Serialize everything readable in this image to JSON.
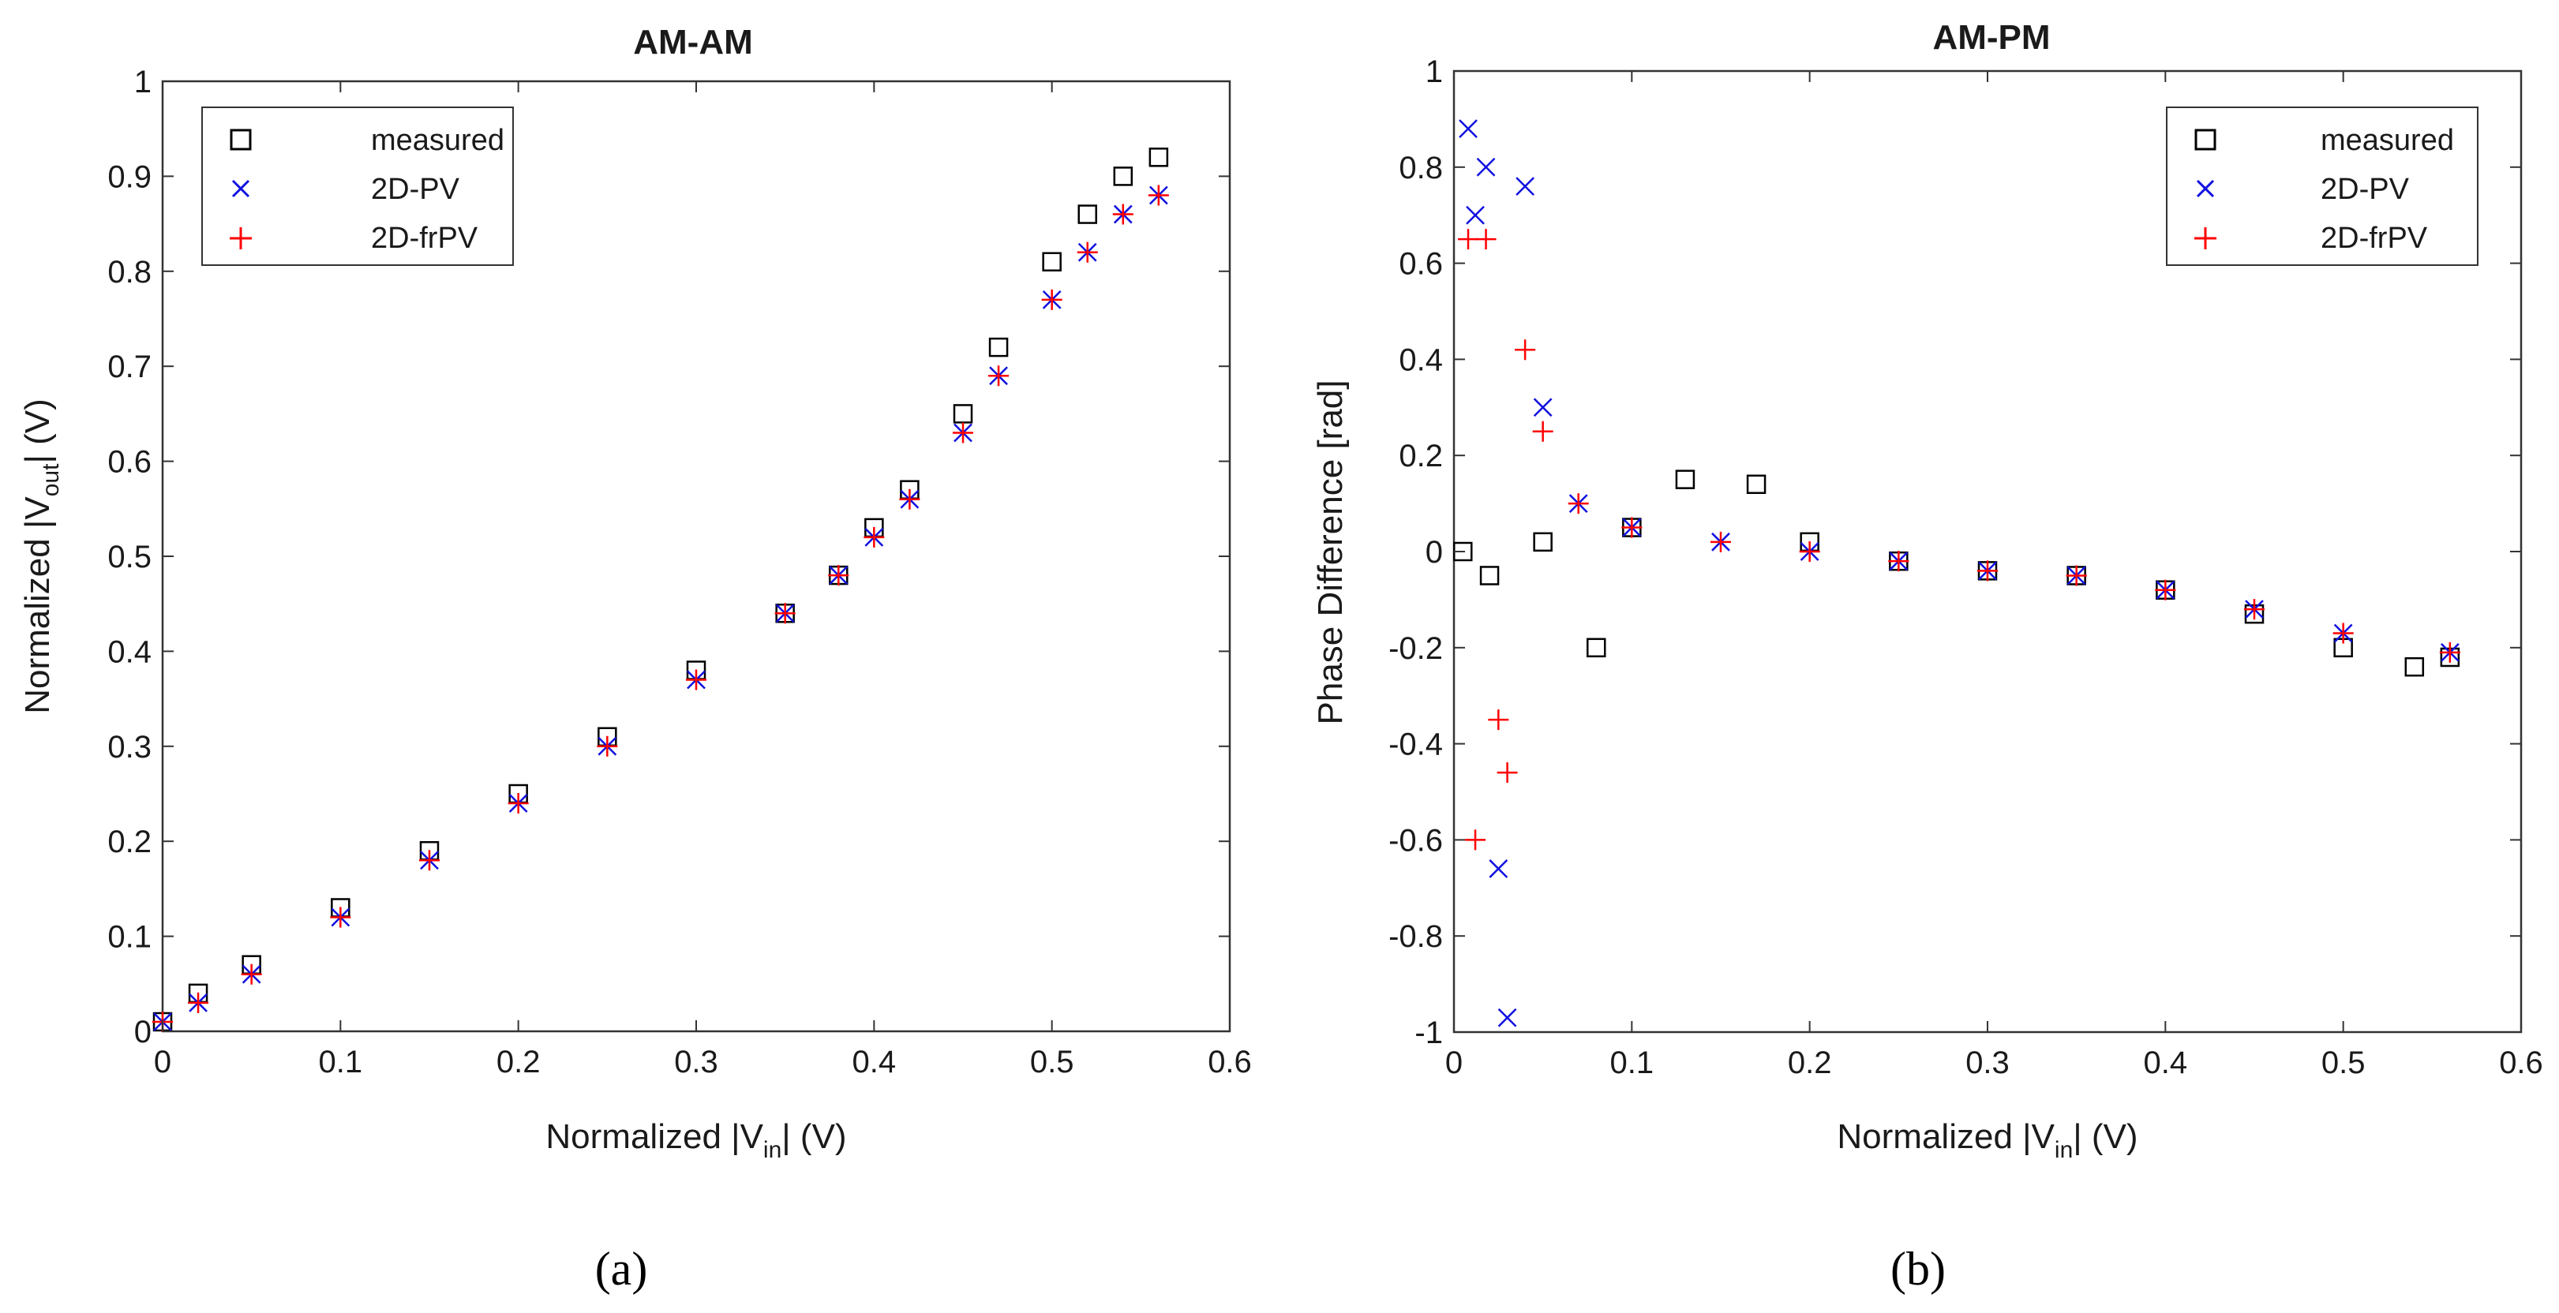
{
  "colors": {
    "measured": "#000000",
    "pv": "#1010e0",
    "frpv": "#ff0000",
    "axis": "#333333"
  },
  "legend_labels": {
    "measured": "measured",
    "pv": "2D-PV",
    "frpv": "2D-frPV"
  },
  "chart_data": [
    {
      "type": "scatter",
      "panel_label": "(a)",
      "title": "AM-AM",
      "xlabel": {
        "main": "Normalized |V",
        "sub": "in",
        "end": "| (V)"
      },
      "ylabel": {
        "main": "Normalized |V",
        "sub": "out",
        "end": "| (V)"
      },
      "xlim": [
        0,
        0.6
      ],
      "ylim": [
        0,
        1
      ],
      "xticks": [
        "0",
        "0.1",
        "0.2",
        "0.3",
        "0.4",
        "0.5",
        "0.6"
      ],
      "yticks": [
        "0",
        "0.1",
        "0.2",
        "0.3",
        "0.4",
        "0.5",
        "0.6",
        "0.7",
        "0.8",
        "0.9",
        "1"
      ],
      "legend_position": "top-left",
      "series": [
        {
          "name": "measured",
          "marker": "square",
          "color": "#000000",
          "x": [
            0.0,
            0.02,
            0.05,
            0.1,
            0.15,
            0.2,
            0.25,
            0.3,
            0.35,
            0.38,
            0.4,
            0.42,
            0.45,
            0.47,
            0.5,
            0.52,
            0.54,
            0.56
          ],
          "y": [
            0.01,
            0.04,
            0.07,
            0.13,
            0.19,
            0.25,
            0.31,
            0.38,
            0.44,
            0.48,
            0.53,
            0.57,
            0.65,
            0.72,
            0.81,
            0.86,
            0.9,
            0.92
          ]
        },
        {
          "name": "2D-PV",
          "marker": "x",
          "color": "#1010e0",
          "x": [
            0.0,
            0.02,
            0.05,
            0.1,
            0.15,
            0.2,
            0.25,
            0.3,
            0.35,
            0.38,
            0.4,
            0.42,
            0.45,
            0.47,
            0.5,
            0.52,
            0.54,
            0.56
          ],
          "y": [
            0.01,
            0.03,
            0.06,
            0.12,
            0.18,
            0.24,
            0.3,
            0.37,
            0.44,
            0.48,
            0.52,
            0.56,
            0.63,
            0.69,
            0.77,
            0.82,
            0.86,
            0.88
          ]
        },
        {
          "name": "2D-frPV",
          "marker": "plus",
          "color": "#ff0000",
          "x": [
            0.0,
            0.02,
            0.05,
            0.1,
            0.15,
            0.2,
            0.25,
            0.3,
            0.35,
            0.38,
            0.4,
            0.42,
            0.45,
            0.47,
            0.5,
            0.52,
            0.54,
            0.56
          ],
          "y": [
            0.01,
            0.03,
            0.06,
            0.12,
            0.18,
            0.24,
            0.3,
            0.37,
            0.44,
            0.48,
            0.52,
            0.56,
            0.63,
            0.69,
            0.77,
            0.82,
            0.86,
            0.88
          ]
        }
      ]
    },
    {
      "type": "scatter",
      "panel_label": "(b)",
      "title": "AM-PM",
      "xlabel": {
        "main": "Normalized |V",
        "sub": "in",
        "end": "| (V)"
      },
      "ylabel": {
        "main": "Phase Difference [rad]",
        "sub": "",
        "end": ""
      },
      "xlim": [
        0,
        0.6
      ],
      "ylim": [
        -1,
        1
      ],
      "xticks": [
        "0",
        "0.1",
        "0.2",
        "0.3",
        "0.4",
        "0.5",
        "0.6"
      ],
      "yticks": [
        "-1",
        "-0.8",
        "-0.6",
        "-0.4",
        "-0.2",
        "0",
        "0.2",
        "0.4",
        "0.6",
        "0.8",
        "1"
      ],
      "legend_position": "top-right",
      "series": [
        {
          "name": "measured",
          "marker": "square",
          "color": "#000000",
          "x": [
            0.005,
            0.02,
            0.05,
            0.08,
            0.1,
            0.13,
            0.17,
            0.2,
            0.25,
            0.3,
            0.35,
            0.4,
            0.45,
            0.5,
            0.54,
            0.56
          ],
          "y": [
            0.0,
            -0.05,
            0.02,
            -0.2,
            0.05,
            0.15,
            0.14,
            0.02,
            -0.02,
            -0.04,
            -0.05,
            -0.08,
            -0.13,
            -0.2,
            -0.24,
            -0.22
          ]
        },
        {
          "name": "2D-PV",
          "marker": "x",
          "color": "#1010e0",
          "x": [
            0.008,
            0.012,
            0.018,
            0.025,
            0.03,
            0.04,
            0.05,
            0.07,
            0.1,
            0.15,
            0.2,
            0.25,
            0.3,
            0.35,
            0.4,
            0.45,
            0.5,
            0.56
          ],
          "y": [
            0.88,
            0.7,
            0.8,
            -0.66,
            -0.97,
            0.76,
            0.3,
            0.1,
            0.05,
            0.02,
            0.0,
            -0.02,
            -0.04,
            -0.05,
            -0.08,
            -0.12,
            -0.17,
            -0.21
          ]
        },
        {
          "name": "2D-frPV",
          "marker": "plus",
          "color": "#ff0000",
          "x": [
            0.008,
            0.012,
            0.018,
            0.025,
            0.03,
            0.04,
            0.05,
            0.07,
            0.1,
            0.15,
            0.2,
            0.25,
            0.3,
            0.35,
            0.4,
            0.45,
            0.5,
            0.56
          ],
          "y": [
            0.65,
            -0.6,
            0.65,
            -0.35,
            -0.46,
            0.42,
            0.25,
            0.1,
            0.05,
            0.02,
            0.0,
            -0.02,
            -0.04,
            -0.05,
            -0.08,
            -0.12,
            -0.17,
            -0.21
          ]
        }
      ]
    }
  ]
}
